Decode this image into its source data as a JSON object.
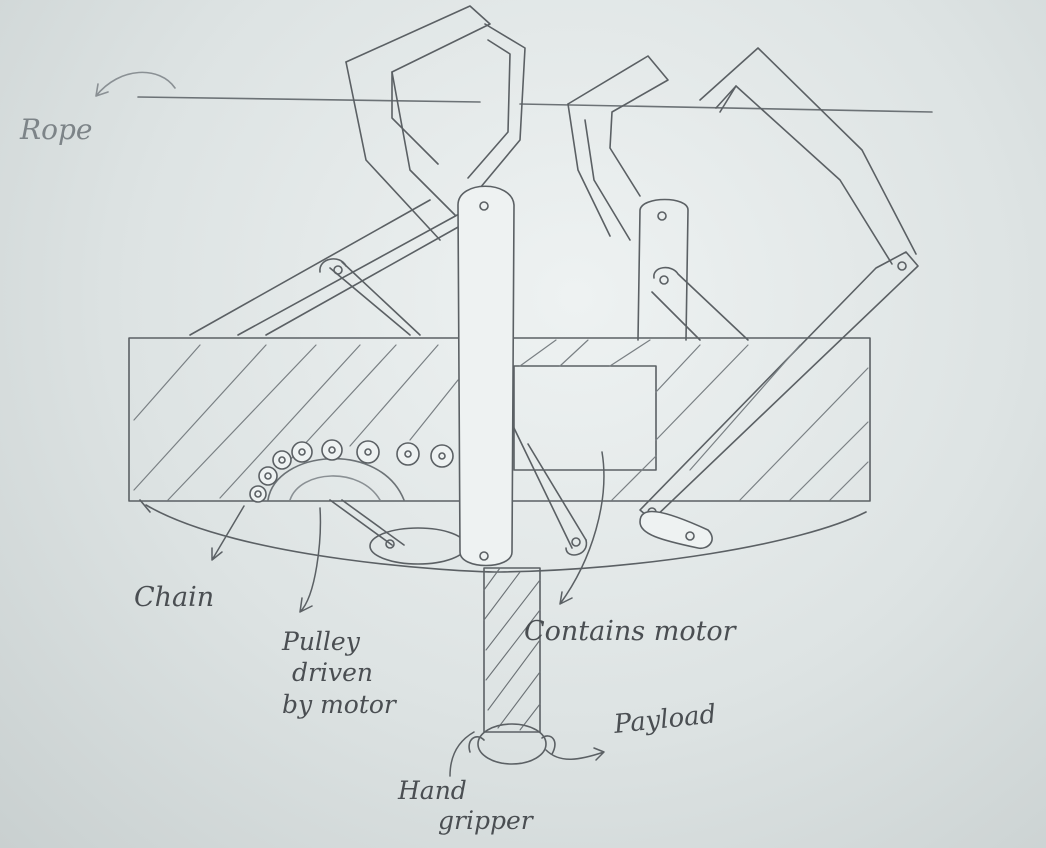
{
  "diagram": {
    "labels": {
      "rope": "Rope",
      "chain": "Chain",
      "pulley_line1": "Pulley",
      "pulley_line2": "driven",
      "pulley_line3": "by motor",
      "contains_motor": "Contains motor",
      "payload": "Payload",
      "hand_line1": "Hand",
      "hand_line2": "gripper"
    },
    "colors": {
      "paper": "#e6ebeb",
      "pencil": "#5b6064",
      "pencil_light": "#8a9094"
    }
  }
}
